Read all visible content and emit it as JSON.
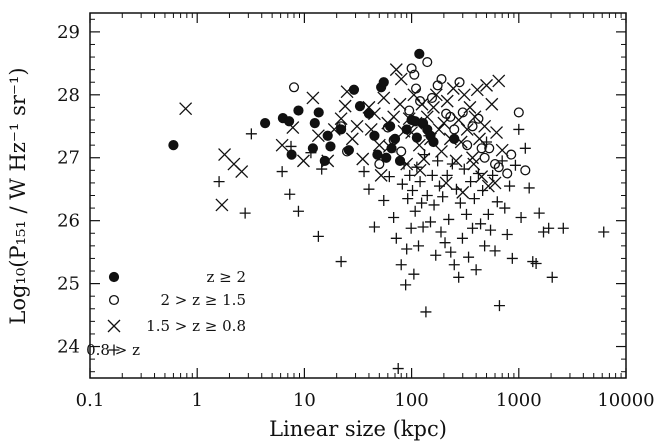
{
  "chart_data": {
    "type": "scatter",
    "xlabel": "Linear size (kpc)",
    "ylabel": "Log₁₀(P₁₅₁ / W Hz⁻¹ sr⁻¹)",
    "x_scale": "log",
    "xlim": [
      0.1,
      10000
    ],
    "ylim": [
      23.5,
      29.3
    ],
    "x_ticks": [
      "0.1",
      "1",
      "10",
      "100",
      "1000",
      "10000"
    ],
    "x_tick_values": [
      0.1,
      1,
      10,
      100,
      1000,
      10000
    ],
    "y_ticks": [
      "24",
      "25",
      "26",
      "27",
      "28",
      "29"
    ],
    "y_tick_values": [
      24,
      25,
      26,
      27,
      28,
      29
    ],
    "legend_position": "bottom-left",
    "series": [
      {
        "name": "z ≥ 2",
        "marker": "filled-circle",
        "points": [
          [
            0.6,
            27.2
          ],
          [
            4.3,
            27.55
          ],
          [
            6.3,
            27.63
          ],
          [
            7.2,
            27.58
          ],
          [
            7.6,
            27.05
          ],
          [
            8.8,
            27.75
          ],
          [
            12,
            27.15
          ],
          [
            12.5,
            27.55
          ],
          [
            13.6,
            27.72
          ],
          [
            15.5,
            26.95
          ],
          [
            16.5,
            27.35
          ],
          [
            17.5,
            27.18
          ],
          [
            22,
            27.45
          ],
          [
            26,
            27.12
          ],
          [
            29,
            28.08
          ],
          [
            33,
            27.82
          ],
          [
            40,
            27.7
          ],
          [
            45,
            27.35
          ],
          [
            48,
            27.05
          ],
          [
            52,
            28.12
          ],
          [
            55,
            28.2
          ],
          [
            58,
            27.0
          ],
          [
            63,
            27.5
          ],
          [
            65,
            27.15
          ],
          [
            70,
            27.3
          ],
          [
            78,
            26.95
          ],
          [
            90,
            27.45
          ],
          [
            100,
            27.6
          ],
          [
            108,
            27.58
          ],
          [
            112,
            27.32
          ],
          [
            118,
            28.65
          ],
          [
            128,
            27.55
          ],
          [
            140,
            27.45
          ],
          [
            150,
            27.35
          ],
          [
            160,
            27.25
          ],
          [
            250,
            27.3
          ]
        ]
      },
      {
        "name": "2 > z ≥ 1.5",
        "marker": "open-circle",
        "points": [
          [
            8,
            28.12
          ],
          [
            22,
            27.5
          ],
          [
            25,
            27.1
          ],
          [
            50,
            26.9
          ],
          [
            60,
            27.48
          ],
          [
            68,
            27.28
          ],
          [
            80,
            27.1
          ],
          [
            95,
            27.75
          ],
          [
            100,
            28.42
          ],
          [
            106,
            28.32
          ],
          [
            110,
            28.1
          ],
          [
            120,
            27.9
          ],
          [
            140,
            28.52
          ],
          [
            155,
            27.95
          ],
          [
            175,
            28.15
          ],
          [
            190,
            28.25
          ],
          [
            210,
            27.7
          ],
          [
            230,
            27.65
          ],
          [
            250,
            27.45
          ],
          [
            280,
            28.2
          ],
          [
            300,
            27.72
          ],
          [
            330,
            27.2
          ],
          [
            370,
            27.5
          ],
          [
            420,
            27.62
          ],
          [
            450,
            27.15
          ],
          [
            480,
            27.0
          ],
          [
            530,
            27.15
          ],
          [
            600,
            26.9
          ],
          [
            650,
            26.85
          ],
          [
            780,
            26.75
          ],
          [
            850,
            27.05
          ],
          [
            1000,
            27.72
          ],
          [
            1150,
            26.8
          ]
        ]
      },
      {
        "name": "1.5 > z ≥ 0.8",
        "marker": "cross",
        "points": [
          [
            0.78,
            27.78
          ],
          [
            1.7,
            26.25
          ],
          [
            1.8,
            27.05
          ],
          [
            2.2,
            26.9
          ],
          [
            2.6,
            26.78
          ],
          [
            6.2,
            27.2
          ],
          [
            7.8,
            27.48
          ],
          [
            9.8,
            26.95
          ],
          [
            12,
            27.95
          ],
          [
            13.5,
            27.35
          ],
          [
            16.5,
            26.95
          ],
          [
            19,
            27.45
          ],
          [
            22,
            27.62
          ],
          [
            24,
            27.82
          ],
          [
            25,
            28.05
          ],
          [
            28,
            27.3
          ],
          [
            31,
            27.5
          ],
          [
            35,
            26.98
          ],
          [
            40,
            27.8
          ],
          [
            42,
            27.45
          ],
          [
            45,
            27.7
          ],
          [
            50,
            27.2
          ],
          [
            52,
            26.72
          ],
          [
            55,
            27.95
          ],
          [
            60,
            27.55
          ],
          [
            62,
            27.18
          ],
          [
            68,
            27.65
          ],
          [
            72,
            28.4
          ],
          [
            78,
            27.85
          ],
          [
            80,
            28.25
          ],
          [
            85,
            27.42
          ],
          [
            90,
            26.9
          ],
          [
            95,
            27.62
          ],
          [
            100,
            27.4
          ],
          [
            105,
            28.0
          ],
          [
            110,
            27.55
          ],
          [
            118,
            27.2
          ],
          [
            125,
            27.85
          ],
          [
            130,
            26.98
          ],
          [
            140,
            27.65
          ],
          [
            150,
            27.3
          ],
          [
            160,
            27.8
          ],
          [
            170,
            28.0
          ],
          [
            180,
            27.45
          ],
          [
            190,
            27.1
          ],
          [
            200,
            27.55
          ],
          [
            215,
            27.9
          ],
          [
            230,
            27.3
          ],
          [
            245,
            28.1
          ],
          [
            260,
            26.95
          ],
          [
            275,
            27.6
          ],
          [
            290,
            27.25
          ],
          [
            310,
            28.0
          ],
          [
            330,
            27.45
          ],
          [
            350,
            27.8
          ],
          [
            370,
            27.0
          ],
          [
            390,
            27.65
          ],
          [
            410,
            28.08
          ],
          [
            430,
            27.3
          ],
          [
            450,
            26.7
          ],
          [
            480,
            27.5
          ],
          [
            500,
            28.15
          ],
          [
            520,
            26.55
          ],
          [
            560,
            27.85
          ],
          [
            600,
            26.6
          ],
          [
            620,
            27.4
          ],
          [
            650,
            28.22
          ],
          [
            700,
            27.12
          ],
          [
            120,
            26.8
          ],
          [
            210,
            26.6
          ],
          [
            300,
            26.45
          ],
          [
            380,
            26.9
          ]
        ]
      },
      {
        "name": "0.8 > z",
        "marker": "plus",
        "points": [
          [
            1.6,
            26.62
          ],
          [
            2.8,
            26.12
          ],
          [
            3.2,
            27.38
          ],
          [
            6.2,
            26.78
          ],
          [
            7.3,
            26.42
          ],
          [
            7.5,
            27.18
          ],
          [
            8.8,
            26.15
          ],
          [
            11.5,
            27.08
          ],
          [
            13.5,
            25.75
          ],
          [
            14.5,
            26.82
          ],
          [
            22,
            25.35
          ],
          [
            36,
            26.78
          ],
          [
            40,
            26.5
          ],
          [
            45,
            25.9
          ],
          [
            55,
            26.32
          ],
          [
            62,
            26.7
          ],
          [
            68,
            26.05
          ],
          [
            72,
            25.72
          ],
          [
            75,
            23.65
          ],
          [
            80,
            25.3
          ],
          [
            82,
            26.58
          ],
          [
            85,
            26.9
          ],
          [
            88,
            24.98
          ],
          [
            90,
            25.55
          ],
          [
            92,
            26.35
          ],
          [
            96,
            26.72
          ],
          [
            99,
            25.88
          ],
          [
            102,
            26.48
          ],
          [
            105,
            25.15
          ],
          [
            108,
            26.15
          ],
          [
            112,
            26.85
          ],
          [
            116,
            25.6
          ],
          [
            120,
            26.62
          ],
          [
            124,
            26.28
          ],
          [
            128,
            25.9
          ],
          [
            132,
            27.05
          ],
          [
            136,
            24.55
          ],
          [
            140,
            26.4
          ],
          [
            145,
            27.35
          ],
          [
            150,
            25.98
          ],
          [
            156,
            26.72
          ],
          [
            162,
            26.25
          ],
          [
            168,
            25.45
          ],
          [
            175,
            26.95
          ],
          [
            182,
            26.55
          ],
          [
            188,
            25.82
          ],
          [
            195,
            26.38
          ],
          [
            205,
            25.65
          ],
          [
            215,
            26.72
          ],
          [
            222,
            26.02
          ],
          [
            232,
            25.5
          ],
          [
            240,
            26.9
          ],
          [
            250,
            25.3
          ],
          [
            262,
            26.5
          ],
          [
            275,
            25.1
          ],
          [
            285,
            26.28
          ],
          [
            298,
            25.72
          ],
          [
            310,
            26.82
          ],
          [
            325,
            26.1
          ],
          [
            340,
            25.42
          ],
          [
            355,
            26.62
          ],
          [
            370,
            25.88
          ],
          [
            385,
            26.35
          ],
          [
            400,
            25.22
          ],
          [
            420,
            26.75
          ],
          [
            440,
            25.95
          ],
          [
            460,
            26.48
          ],
          [
            480,
            25.6
          ],
          [
            500,
            27.25
          ],
          [
            520,
            26.1
          ],
          [
            545,
            25.85
          ],
          [
            570,
            26.72
          ],
          [
            600,
            25.52
          ],
          [
            630,
            26.3
          ],
          [
            660,
            24.65
          ],
          [
            700,
            26.95
          ],
          [
            740,
            26.2
          ],
          [
            780,
            25.78
          ],
          [
            820,
            26.55
          ],
          [
            870,
            25.4
          ],
          [
            930,
            26.88
          ],
          [
            1000,
            27.45
          ],
          [
            1050,
            26.05
          ],
          [
            1150,
            27.15
          ],
          [
            1250,
            26.52
          ],
          [
            1350,
            25.35
          ],
          [
            1450,
            25.32
          ],
          [
            1550,
            26.12
          ],
          [
            1700,
            25.82
          ],
          [
            1900,
            25.88
          ],
          [
            2050,
            25.1
          ],
          [
            2600,
            25.88
          ],
          [
            6200,
            25.82
          ]
        ]
      }
    ]
  },
  "colors": {
    "ink": "#111111",
    "background": "#ffffff"
  }
}
